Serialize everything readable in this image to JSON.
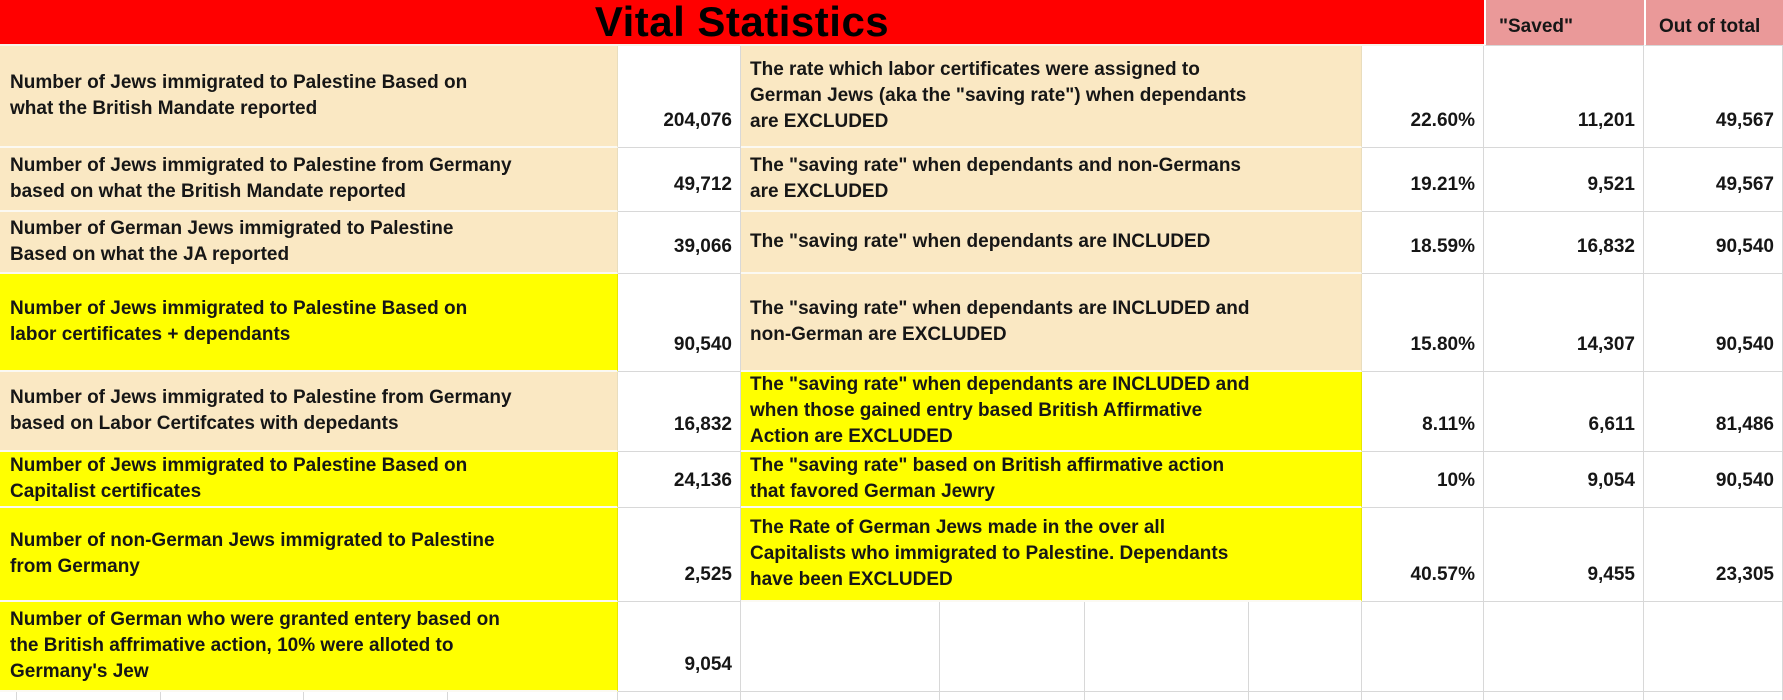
{
  "title": "Vital Statistics",
  "column_headers": {
    "saved": "\"Saved\"",
    "out_of_total": "Out of total"
  },
  "colors": {
    "header_red": "#ff0000",
    "header_pink": "#ea9999",
    "highlight_tan": "#fae8c3",
    "highlight_yellow": "#ffff00"
  },
  "rows": [
    {
      "label": "Number of Jews immigrated to Palestine Based on\nwhat the British Mandate reported",
      "value": "204,076",
      "desc": "The rate which labor certificates were assigned to\nGerman Jews (aka the \"saving rate\") when dependants\nare EXCLUDED",
      "pct": "22.60%",
      "saved": "11,201",
      "total": "49,567",
      "label_bg": "tan",
      "desc_bg": "tan"
    },
    {
      "label": "Number of Jews immigrated to Palestine from Germany\nbased on what the British Mandate reported",
      "value": "49,712",
      "desc": "The \"saving rate\" when dependants and non-Germans\nare EXCLUDED",
      "pct": "19.21%",
      "saved": "9,521",
      "total": "49,567",
      "label_bg": "tan",
      "desc_bg": "tan"
    },
    {
      "label": "Number of German Jews immigrated to Palestine\nBased on what the JA reported",
      "value": "39,066",
      "desc": "The \"saving rate\" when dependants are INCLUDED",
      "pct": "18.59%",
      "saved": "16,832",
      "total": "90,540",
      "label_bg": "tan",
      "desc_bg": "tan"
    },
    {
      "label": "Number of Jews immigrated to Palestine Based on\nlabor certificates + dependants",
      "value": "90,540",
      "desc": "The \"saving rate\" when dependants are INCLUDED and\nnon-German are EXCLUDED",
      "pct": "15.80%",
      "saved": "14,307",
      "total": "90,540",
      "label_bg": "yellow",
      "desc_bg": "tan"
    },
    {
      "label": "Number of Jews immigrated to Palestine from Germany\nbased on Labor Certifcates with depedants",
      "value": "16,832",
      "desc": "The \"saving rate\" when dependants are INCLUDED and\nwhen those gained entry based British Affirmative\nAction are EXCLUDED",
      "pct": "8.11%",
      "saved": "6,611",
      "total": "81,486",
      "label_bg": "tan",
      "desc_bg": "yellow"
    },
    {
      "label": "Number of Jews immigrated to Palestine Based on\nCapitalist certificates",
      "value": "24,136",
      "desc": "The \"saving rate\" based on British affirmative action\nthat favored German Jewry",
      "pct": "10%",
      "saved": "9,054",
      "total": "90,540",
      "label_bg": "yellow",
      "desc_bg": "yellow"
    },
    {
      "label": "Number of non-German Jews immigrated to Palestine\nfrom Germany",
      "value": "2,525",
      "desc": "The Rate of German Jews made in the over all\nCapitalists who immigrated to Palestine. Dependants\nhave been EXCLUDED",
      "pct": "40.57%",
      "saved": "9,455",
      "total": "23,305",
      "label_bg": "yellow",
      "desc_bg": "yellow"
    },
    {
      "label": "Number of German who were granted entery based on\nthe British affrimative action, 10% were alloted to\nGermany's Jew",
      "value": "9,054",
      "desc": "",
      "pct": "",
      "saved": "",
      "total": "",
      "label_bg": "yellow",
      "desc_bg": "none"
    }
  ]
}
